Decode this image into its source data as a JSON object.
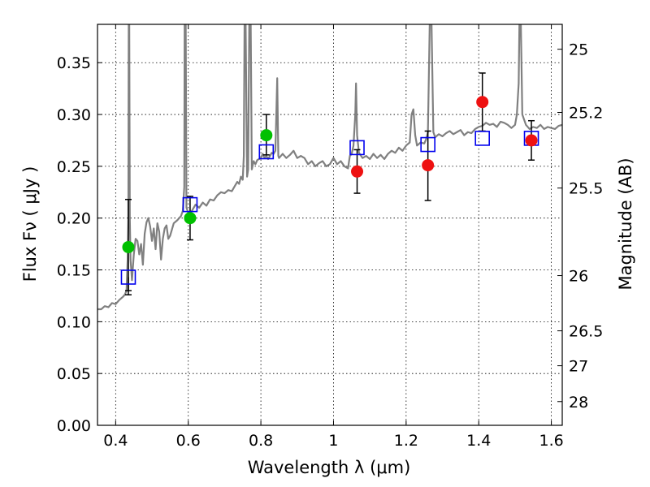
{
  "chart_data": {
    "type": "scatter",
    "xlabel": "Wavelength  λ (μm)",
    "ylabel": "Flux  Fν  ( μJy )",
    "y2label": "Magnitude (AB)",
    "xlim": [
      0.35,
      1.63
    ],
    "ylim": [
      0,
      0.387
    ],
    "x_ticks": [
      0.4,
      0.6,
      0.8,
      1.0,
      1.2,
      1.4,
      1.6
    ],
    "x_tick_labels": [
      "0.4",
      "0.6",
      "0.8",
      "1",
      "1.2",
      "1.4",
      "1.6"
    ],
    "y_ticks": [
      0.0,
      0.05,
      0.1,
      0.15,
      0.2,
      0.25,
      0.3,
      0.35
    ],
    "y_tick_labels": [
      "0.00",
      "0.05",
      "0.10",
      "0.15",
      "0.20",
      "0.25",
      "0.30",
      "0.35"
    ],
    "y2_ticks": [
      {
        "mag": "25",
        "flux": 0.363
      },
      {
        "mag": "25.2",
        "flux": 0.302
      },
      {
        "mag": "25.5",
        "flux": 0.229
      },
      {
        "mag": "26",
        "flux": 0.1445
      },
      {
        "mag": "26.5",
        "flux": 0.0912
      },
      {
        "mag": "27",
        "flux": 0.0575
      },
      {
        "mag": "28",
        "flux": 0.0229
      }
    ],
    "grid": true,
    "colors": {
      "model": "#808080",
      "green": "#00c000",
      "red": "#ee1111",
      "square": "#0000ee",
      "errorbar": "#000000"
    },
    "model_spectrum": [
      [
        0.35,
        0.112
      ],
      [
        0.36,
        0.112
      ],
      [
        0.37,
        0.115
      ],
      [
        0.38,
        0.114
      ],
      [
        0.39,
        0.118
      ],
      [
        0.4,
        0.117
      ],
      [
        0.41,
        0.121
      ],
      [
        0.42,
        0.124
      ],
      [
        0.425,
        0.126
      ],
      [
        0.43,
        0.13
      ],
      [
        0.433,
        0.16
      ],
      [
        0.435,
        0.2
      ],
      [
        0.436,
        0.387
      ],
      [
        0.4375,
        0.387
      ],
      [
        0.439,
        0.2
      ],
      [
        0.441,
        0.16
      ],
      [
        0.445,
        0.14
      ],
      [
        0.45,
        0.165
      ],
      [
        0.455,
        0.18
      ],
      [
        0.46,
        0.178
      ],
      [
        0.465,
        0.165
      ],
      [
        0.47,
        0.175
      ],
      [
        0.475,
        0.155
      ],
      [
        0.48,
        0.185
      ],
      [
        0.485,
        0.196
      ],
      [
        0.49,
        0.2
      ],
      [
        0.495,
        0.192
      ],
      [
        0.5,
        0.178
      ],
      [
        0.505,
        0.19
      ],
      [
        0.51,
        0.17
      ],
      [
        0.515,
        0.195
      ],
      [
        0.52,
        0.187
      ],
      [
        0.525,
        0.16
      ],
      [
        0.53,
        0.18
      ],
      [
        0.535,
        0.19
      ],
      [
        0.54,
        0.193
      ],
      [
        0.545,
        0.18
      ],
      [
        0.55,
        0.183
      ],
      [
        0.56,
        0.195
      ],
      [
        0.57,
        0.198
      ],
      [
        0.575,
        0.2
      ],
      [
        0.58,
        0.202
      ],
      [
        0.585,
        0.207
      ],
      [
        0.589,
        0.23
      ],
      [
        0.59,
        0.387
      ],
      [
        0.593,
        0.387
      ],
      [
        0.595,
        0.21
      ],
      [
        0.6,
        0.205
      ],
      [
        0.61,
        0.207
      ],
      [
        0.62,
        0.213
      ],
      [
        0.63,
        0.21
      ],
      [
        0.64,
        0.215
      ],
      [
        0.65,
        0.212
      ],
      [
        0.66,
        0.218
      ],
      [
        0.67,
        0.217
      ],
      [
        0.68,
        0.222
      ],
      [
        0.69,
        0.225
      ],
      [
        0.7,
        0.224
      ],
      [
        0.71,
        0.227
      ],
      [
        0.72,
        0.226
      ],
      [
        0.73,
        0.232
      ],
      [
        0.735,
        0.235
      ],
      [
        0.74,
        0.233
      ],
      [
        0.745,
        0.24
      ],
      [
        0.75,
        0.237
      ],
      [
        0.753,
        0.26
      ],
      [
        0.755,
        0.387
      ],
      [
        0.758,
        0.387
      ],
      [
        0.762,
        0.24
      ],
      [
        0.765,
        0.247
      ],
      [
        0.768,
        0.387
      ],
      [
        0.772,
        0.387
      ],
      [
        0.775,
        0.247
      ],
      [
        0.78,
        0.255
      ],
      [
        0.785,
        0.252
      ],
      [
        0.79,
        0.256
      ],
      [
        0.795,
        0.257
      ],
      [
        0.8,
        0.258
      ],
      [
        0.805,
        0.262
      ],
      [
        0.81,
        0.258
      ],
      [
        0.815,
        0.26
      ],
      [
        0.82,
        0.257
      ],
      [
        0.825,
        0.26
      ],
      [
        0.83,
        0.263
      ],
      [
        0.835,
        0.262
      ],
      [
        0.84,
        0.265
      ],
      [
        0.845,
        0.335
      ],
      [
        0.848,
        0.26
      ],
      [
        0.85,
        0.258
      ],
      [
        0.86,
        0.262
      ],
      [
        0.87,
        0.258
      ],
      [
        0.88,
        0.261
      ],
      [
        0.89,
        0.265
      ],
      [
        0.9,
        0.258
      ],
      [
        0.91,
        0.26
      ],
      [
        0.92,
        0.258
      ],
      [
        0.93,
        0.252
      ],
      [
        0.94,
        0.255
      ],
      [
        0.95,
        0.25
      ],
      [
        0.96,
        0.253
      ],
      [
        0.97,
        0.255
      ],
      [
        0.98,
        0.25
      ],
      [
        0.99,
        0.252
      ],
      [
        1.0,
        0.258
      ],
      [
        1.01,
        0.252
      ],
      [
        1.02,
        0.255
      ],
      [
        1.03,
        0.25
      ],
      [
        1.04,
        0.248
      ],
      [
        1.045,
        0.26
      ],
      [
        1.05,
        0.262
      ],
      [
        1.055,
        0.27
      ],
      [
        1.06,
        0.3
      ],
      [
        1.062,
        0.33
      ],
      [
        1.065,
        0.28
      ],
      [
        1.07,
        0.263
      ],
      [
        1.08,
        0.258
      ],
      [
        1.09,
        0.26
      ],
      [
        1.1,
        0.257
      ],
      [
        1.11,
        0.262
      ],
      [
        1.12,
        0.258
      ],
      [
        1.13,
        0.261
      ],
      [
        1.14,
        0.257
      ],
      [
        1.15,
        0.262
      ],
      [
        1.16,
        0.265
      ],
      [
        1.17,
        0.263
      ],
      [
        1.18,
        0.268
      ],
      [
        1.19,
        0.265
      ],
      [
        1.2,
        0.27
      ],
      [
        1.21,
        0.273
      ],
      [
        1.215,
        0.3
      ],
      [
        1.22,
        0.305
      ],
      [
        1.225,
        0.28
      ],
      [
        1.23,
        0.27
      ],
      [
        1.24,
        0.273
      ],
      [
        1.25,
        0.272
      ],
      [
        1.255,
        0.276
      ],
      [
        1.26,
        0.283
      ],
      [
        1.265,
        0.387
      ],
      [
        1.27,
        0.387
      ],
      [
        1.275,
        0.283
      ],
      [
        1.28,
        0.278
      ],
      [
        1.29,
        0.281
      ],
      [
        1.3,
        0.279
      ],
      [
        1.31,
        0.282
      ],
      [
        1.32,
        0.284
      ],
      [
        1.33,
        0.281
      ],
      [
        1.34,
        0.283
      ],
      [
        1.35,
        0.285
      ],
      [
        1.36,
        0.28
      ],
      [
        1.37,
        0.283
      ],
      [
        1.38,
        0.282
      ],
      [
        1.39,
        0.286
      ],
      [
        1.4,
        0.288
      ],
      [
        1.41,
        0.289
      ],
      [
        1.42,
        0.292
      ],
      [
        1.43,
        0.29
      ],
      [
        1.44,
        0.291
      ],
      [
        1.45,
        0.288
      ],
      [
        1.46,
        0.293
      ],
      [
        1.47,
        0.292
      ],
      [
        1.48,
        0.29
      ],
      [
        1.49,
        0.287
      ],
      [
        1.5,
        0.29
      ],
      [
        1.505,
        0.3
      ],
      [
        1.51,
        0.33
      ],
      [
        1.512,
        0.387
      ],
      [
        1.516,
        0.387
      ],
      [
        1.52,
        0.3
      ],
      [
        1.53,
        0.29
      ],
      [
        1.54,
        0.286
      ],
      [
        1.55,
        0.288
      ],
      [
        1.56,
        0.287
      ],
      [
        1.57,
        0.29
      ],
      [
        1.58,
        0.286
      ],
      [
        1.59,
        0.288
      ],
      [
        1.6,
        0.287
      ],
      [
        1.61,
        0.286
      ],
      [
        1.62,
        0.289
      ],
      [
        1.63,
        0.29
      ]
    ],
    "green_points": [
      {
        "x": 0.435,
        "y": 0.172,
        "err": [
          0.13,
          0.218
        ]
      },
      {
        "x": 0.605,
        "y": 0.2,
        "err": [
          0.179,
          0.221
        ]
      },
      {
        "x": 0.815,
        "y": 0.28,
        "err": [
          0.261,
          0.3
        ]
      }
    ],
    "red_points": [
      {
        "x": 1.065,
        "y": 0.245,
        "err": [
          0.224,
          0.266
        ]
      },
      {
        "x": 1.26,
        "y": 0.251,
        "err": [
          0.217,
          0.284
        ]
      },
      {
        "x": 1.41,
        "y": 0.312,
        "err": [
          0.284,
          0.34
        ]
      },
      {
        "x": 1.545,
        "y": 0.275,
        "err": [
          0.256,
          0.294
        ]
      }
    ],
    "model_squares": [
      {
        "x": 0.435,
        "y": 0.143
      },
      {
        "x": 0.605,
        "y": 0.213
      },
      {
        "x": 0.815,
        "y": 0.264
      },
      {
        "x": 1.065,
        "y": 0.268
      },
      {
        "x": 1.26,
        "y": 0.271
      },
      {
        "x": 1.41,
        "y": 0.277
      },
      {
        "x": 1.545,
        "y": 0.277
      }
    ],
    "lower_errorbar_caps": [
      {
        "x": 0.435,
        "y": 0.126
      }
    ]
  }
}
